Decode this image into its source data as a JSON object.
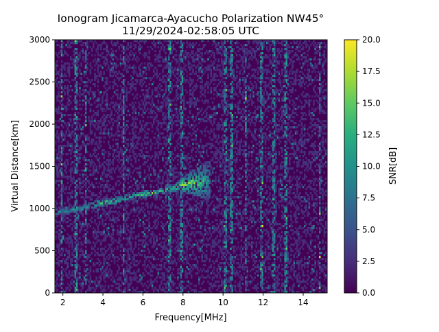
{
  "chart_data": {
    "type": "heatmap",
    "title": "Ionogram Jicamarca-Ayacucho Polarization NW45°",
    "subtitle": "11/29/2024-02:58:05 UTC",
    "xlabel": "Frequency[MHz]",
    "ylabel": "Virtual Distance[km]",
    "xlim": [
      1.6,
      15.2
    ],
    "ylim": [
      0,
      3000
    ],
    "xticks": [
      2,
      4,
      6,
      8,
      10,
      12,
      14
    ],
    "yticks": [
      0,
      500,
      1000,
      1500,
      2000,
      2500,
      3000
    ],
    "colorbar": {
      "label": "SNR[dB]",
      "colormap": "viridis",
      "range": [
        0,
        20
      ],
      "ticks": [
        "0.0",
        "2.5",
        "5.0",
        "7.5",
        "10.0",
        "12.5",
        "15.0",
        "17.5",
        "20.0"
      ]
    },
    "grid": false,
    "traces": [
      {
        "description_id": "ionospheric-echo",
        "points": [
          {
            "freq": 1.7,
            "dist": 970,
            "snr": 10
          },
          {
            "freq": 2.2,
            "dist": 990,
            "snr": 11
          },
          {
            "freq": 2.8,
            "dist": 1010,
            "snr": 12
          },
          {
            "freq": 3.4,
            "dist": 1050,
            "snr": 13
          },
          {
            "freq": 4.0,
            "dist": 1080,
            "snr": 16
          },
          {
            "freq": 4.5,
            "dist": 1100,
            "snr": 17
          },
          {
            "freq": 5.0,
            "dist": 1130,
            "snr": 15
          },
          {
            "freq": 5.5,
            "dist": 1160,
            "snr": 15
          },
          {
            "freq": 6.0,
            "dist": 1180,
            "snr": 16
          },
          {
            "freq": 6.5,
            "dist": 1200,
            "snr": 17
          },
          {
            "freq": 7.0,
            "dist": 1230,
            "snr": 17
          },
          {
            "freq": 7.5,
            "dist": 1250,
            "snr": 16
          },
          {
            "freq": 8.0,
            "dist": 1300,
            "snr": 18
          },
          {
            "freq": 8.5,
            "dist": 1320,
            "snr": 17
          },
          {
            "freq": 9.0,
            "dist": 1330,
            "snr": 14
          },
          {
            "freq": 9.3,
            "dist": 1340,
            "snr": 11
          }
        ]
      }
    ],
    "interference_bands_mhz": [
      1.9,
      2.6,
      3.1,
      5.0,
      7.3,
      7.9,
      10.1,
      10.4,
      11.1,
      11.9,
      12.5,
      13.1,
      14.8
    ]
  }
}
